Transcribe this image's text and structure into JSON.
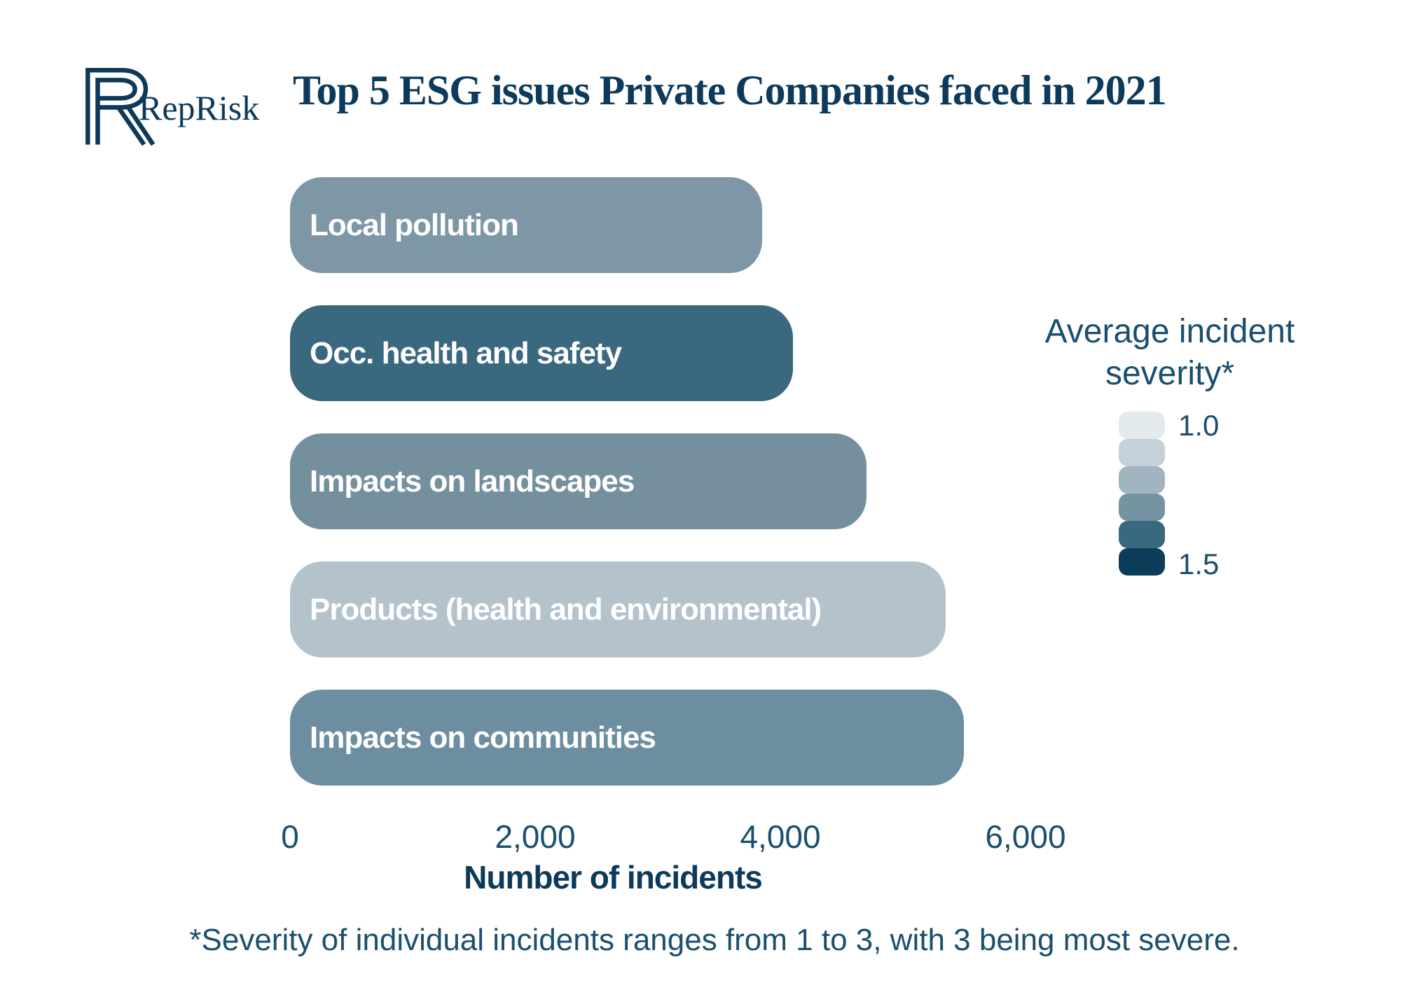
{
  "header": {
    "brand": "RepRisk",
    "title": "Top 5 ESG issues Private Companies faced in 2021"
  },
  "chart_data": {
    "type": "bar",
    "orientation": "horizontal",
    "title": "Top 5 ESG issues Private Companies faced in 2021",
    "categories": [
      "Local pollution",
      "Occ. health and safety",
      "Impacts on landscapes",
      "Products (health and environmental)",
      "Impacts on communities"
    ],
    "values": [
      3850,
      4100,
      4700,
      5350,
      5500
    ],
    "bar_colors": [
      "#7d97a6",
      "#3a687f",
      "#74909f",
      "#b3c2cb",
      "#6d8ea0"
    ],
    "xlabel": "Number of incidents",
    "ylabel": "",
    "xlim": [
      0,
      6000
    ],
    "x_ticks": [
      {
        "value": 0,
        "label": "0"
      },
      {
        "value": 2000,
        "label": "2,000"
      },
      {
        "value": 4000,
        "label": "4,000"
      },
      {
        "value": 6000,
        "label": "6,000"
      }
    ],
    "grid": false,
    "legend": {
      "position": "right",
      "title_line1": "Average incident",
      "title_line2": "severity*",
      "min_label": "1.0",
      "max_label": "1.5",
      "swatch_colors": [
        "#e3eaee",
        "#c4d1d8",
        "#a0b5c0",
        "#7593a3",
        "#3a687f",
        "#0b3c5a"
      ]
    }
  },
  "footnote": "*Severity of individual incidents ranges from 1 to 3, with 3 being most severe.",
  "colors": {
    "title_navy": "#0d3a5b",
    "label_navy": "#1a4f6e",
    "bar_text": "#ffffff",
    "background": "#ffffff"
  }
}
